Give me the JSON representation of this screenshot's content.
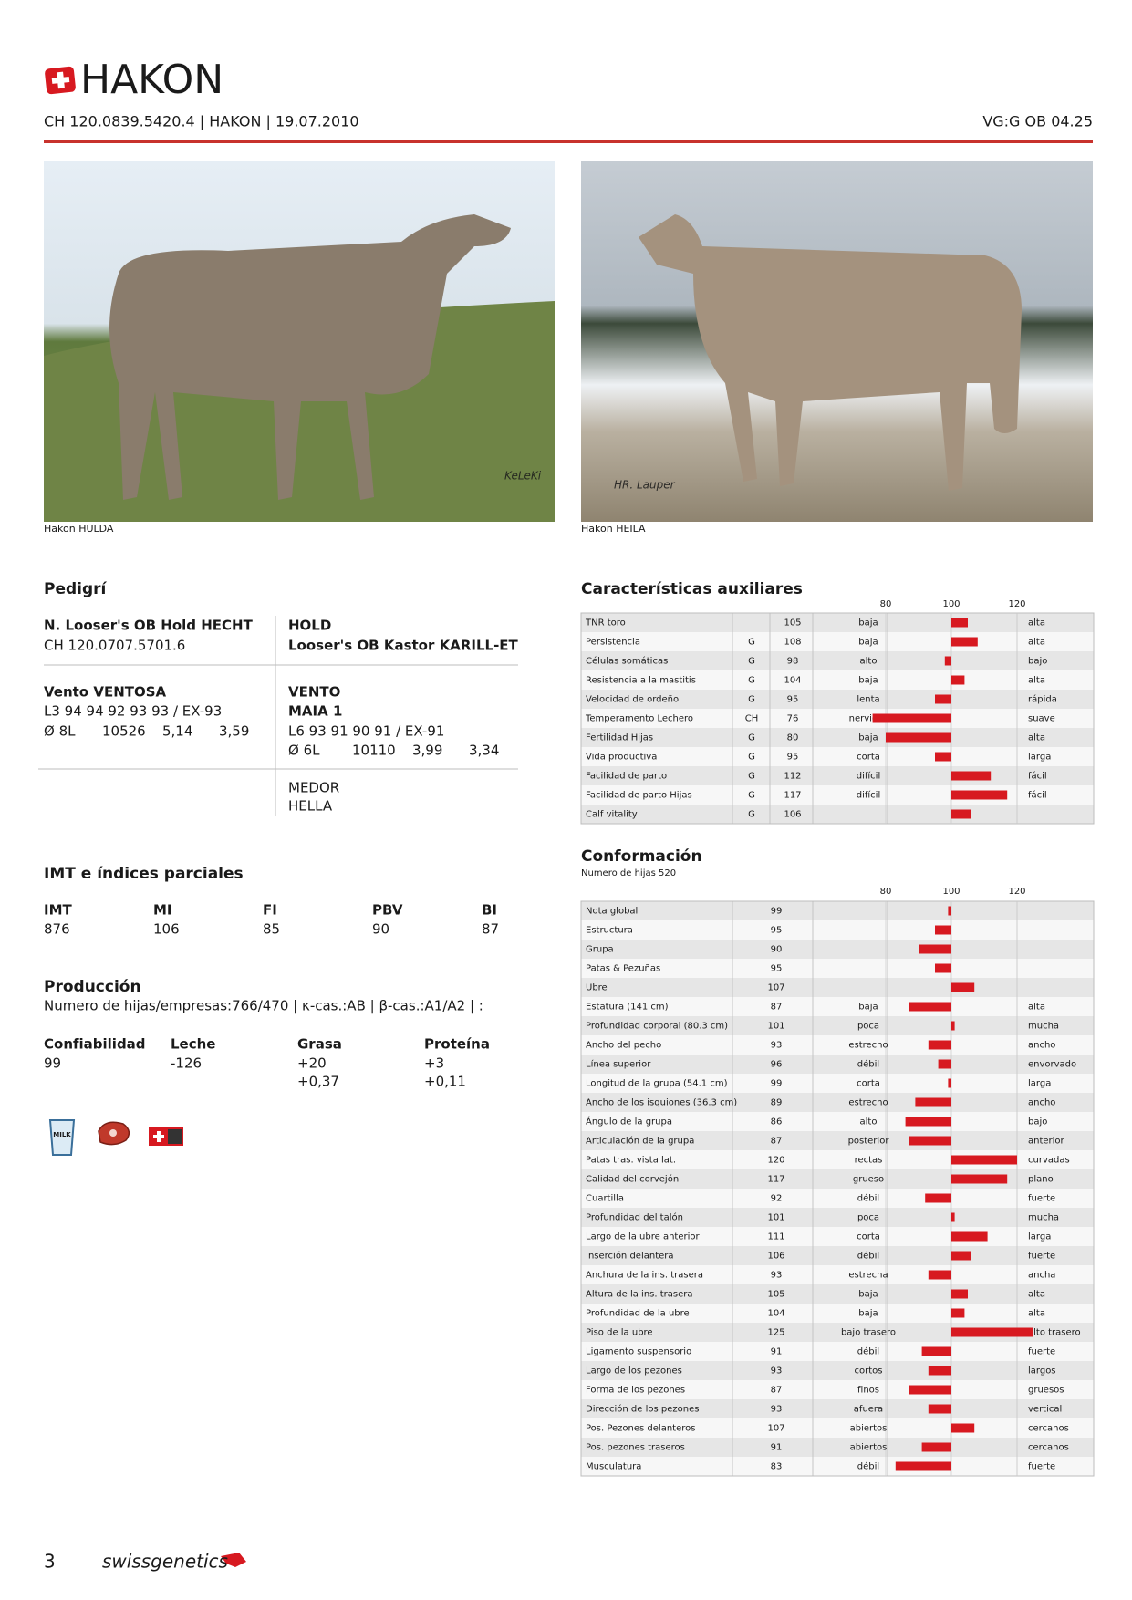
{
  "header": {
    "title": "HAKON",
    "id_line": "CH 120.0839.5420.4 | HAKON | 19.07.2010",
    "classification": "VG:G OB 04.25"
  },
  "photos": [
    {
      "caption": "Hakon HULDA",
      "watermark": "KeLeKi"
    },
    {
      "caption": "Hakon HEILA",
      "watermark": "HR. Lauper"
    }
  ],
  "pedigree": {
    "title": "Pedigrí",
    "sire": {
      "name": "N. Looser's OB Hold HECHT",
      "id": "CH 120.0707.5701.6"
    },
    "sire_sire": "HOLD",
    "sire_maternal_grandsire": "Looser's OB Kastor KARILL-ET",
    "dam": {
      "name": "Vento VENTOSA",
      "scores": "L3 94 94 92 93 93 / EX-93",
      "perf": [
        "Ø 8L",
        "10526",
        "5,14",
        "3,59"
      ]
    },
    "dam_sire": "VENTO",
    "dam_dam": {
      "name": "MAIA 1",
      "scores": "L6 93 91 90 91 / EX-91",
      "perf": [
        "Ø 6L",
        "10110",
        "3,99",
        "3,34"
      ]
    },
    "dam_dam_sire": "MEDOR",
    "dam_dam_dam": "HELLA"
  },
  "indices": {
    "title": "IMT e índices parciales",
    "columns": [
      {
        "label": "IMT",
        "value": 876
      },
      {
        "label": "MI",
        "value": 106
      },
      {
        "label": "FI",
        "value": 85
      },
      {
        "label": "PBV",
        "value": 90
      },
      {
        "label": "BI",
        "value": 87
      }
    ]
  },
  "production": {
    "title": "Producción",
    "info": "Numero de hijas/empresas:766/470 | κ-cas.:AB | β-cas.:A1/A2 | :",
    "columns": [
      {
        "label": "Confiabilidad",
        "values": [
          "99"
        ]
      },
      {
        "label": "Leche",
        "values": [
          "-126"
        ]
      },
      {
        "label": "Grasa",
        "values": [
          "+20",
          "+0,37"
        ]
      },
      {
        "label": "Proteína",
        "values": [
          "+3",
          "+0,11"
        ]
      }
    ],
    "milk_icon_label": "MILK"
  },
  "auxiliary": {
    "title": "Características auxiliares",
    "xticks": [
      80,
      100,
      120
    ],
    "bar_color": "#d71920",
    "rows": [
      {
        "trait": "TNR toro",
        "value": 105,
        "low": "baja",
        "high": "alta"
      },
      {
        "trait": "Persistencia",
        "source": "G",
        "value": 108,
        "low": "baja",
        "high": "alta"
      },
      {
        "trait": "Células somáticas",
        "source": "G",
        "value": 98,
        "low": "alto",
        "high": "bajo"
      },
      {
        "trait": "Resistencia a la mastitis",
        "source": "G",
        "value": 104,
        "low": "baja",
        "high": "alta"
      },
      {
        "trait": "Velocidad de ordeño",
        "source": "G",
        "value": 95,
        "low": "lenta",
        "high": "rápida"
      },
      {
        "trait": "Temperamento Lechero",
        "source": "CH",
        "value": 76,
        "low": "nervioso",
        "high": "suave"
      },
      {
        "trait": "Fertilidad Hijas",
        "source": "G",
        "value": 80,
        "low": "baja",
        "high": "alta"
      },
      {
        "trait": "Vida productiva",
        "source": "G",
        "value": 95,
        "low": "corta",
        "high": "larga"
      },
      {
        "trait": "Facilidad de parto",
        "source": "G",
        "value": 112,
        "low": "difícil",
        "high": "fácil"
      },
      {
        "trait": "Facilidad de parto Hijas",
        "source": "G",
        "value": 117,
        "low": "difícil",
        "high": "fácil"
      },
      {
        "trait": "Calf vitality",
        "source": "G",
        "value": 106
      }
    ]
  },
  "conformation": {
    "title": "Conformación",
    "subtitle": "Numero de hijas 520",
    "xticks": [
      80,
      100,
      120
    ],
    "bar_color": "#d71920",
    "rows": [
      {
        "trait": "Nota global",
        "value": 99
      },
      {
        "trait": "Estructura",
        "value": 95
      },
      {
        "trait": "Grupa",
        "value": 90
      },
      {
        "trait": "Patas & Pezuñas",
        "value": 95
      },
      {
        "trait": "Ubre",
        "value": 107
      },
      {
        "trait": "Estatura (141 cm)",
        "value": 87,
        "low": "baja",
        "high": "alta"
      },
      {
        "trait": "Profundidad corporal (80.3 cm)",
        "value": 101,
        "low": "poca",
        "high": "mucha"
      },
      {
        "trait": "Ancho del pecho",
        "value": 93,
        "low": "estrecho",
        "high": "ancho"
      },
      {
        "trait": "Línea superior",
        "value": 96,
        "low": "débil",
        "high": "envorvado"
      },
      {
        "trait": "Longitud de la grupa (54.1 cm)",
        "value": 99,
        "low": "corta",
        "high": "larga"
      },
      {
        "trait": "Ancho de los isquiones (36.3 cm)",
        "value": 89,
        "low": "estrecho",
        "high": "ancho"
      },
      {
        "trait": "Ángulo de la grupa",
        "value": 86,
        "low": "alto",
        "high": "bajo"
      },
      {
        "trait": "Articulación de la grupa",
        "value": 87,
        "low": "posterior",
        "high": "anterior"
      },
      {
        "trait": "Patas tras. vista lat.",
        "value": 120,
        "low": "rectas",
        "high": "curvadas"
      },
      {
        "trait": "Calidad del corvejón",
        "value": 117,
        "low": "grueso",
        "high": "plano"
      },
      {
        "trait": "Cuartilla",
        "value": 92,
        "low": "débil",
        "high": "fuerte"
      },
      {
        "trait": "Profundidad del talón",
        "value": 101,
        "low": "poca",
        "high": "mucha"
      },
      {
        "trait": "Largo de la ubre anterior",
        "value": 111,
        "low": "corta",
        "high": "larga"
      },
      {
        "trait": "Inserción delantera",
        "value": 106,
        "low": "débil",
        "high": "fuerte"
      },
      {
        "trait": "Anchura de la ins. trasera",
        "value": 93,
        "low": "estrecha",
        "high": "ancha"
      },
      {
        "trait": "Altura de la ins. trasera",
        "value": 105,
        "low": "baja",
        "high": "alta"
      },
      {
        "trait": "Profundidad de la ubre",
        "value": 104,
        "low": "baja",
        "high": "alta"
      },
      {
        "trait": "Piso de la ubre",
        "value": 125,
        "low": "bajo trasero",
        "high": "alto trasero"
      },
      {
        "trait": "Ligamento suspensorio",
        "value": 91,
        "low": "débil",
        "high": "fuerte"
      },
      {
        "trait": "Largo de los pezones",
        "value": 93,
        "low": "cortos",
        "high": "largos"
      },
      {
        "trait": "Forma de los pezones",
        "value": 87,
        "low": "finos",
        "high": "gruesos"
      },
      {
        "trait": "Dirección de los pezones",
        "value": 93,
        "low": "afuera",
        "high": "vertical"
      },
      {
        "trait": "Pos. Pezones delanteros",
        "value": 107,
        "low": "abiertos",
        "high": "cercanos"
      },
      {
        "trait": "Pos. pezones traseros",
        "value": 91,
        "low": "abiertos",
        "high": "cercanos"
      },
      {
        "trait": "Musculatura",
        "value": 83,
        "low": "débil",
        "high": "fuerte"
      }
    ]
  },
  "footer": {
    "page": "3",
    "brand": "swissgenetics"
  }
}
